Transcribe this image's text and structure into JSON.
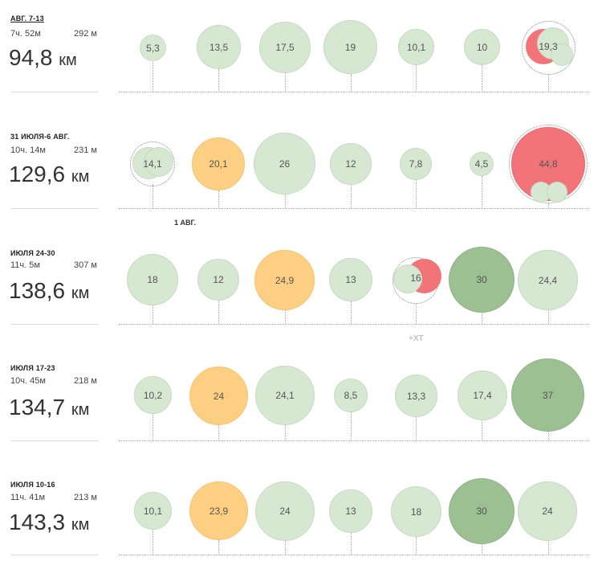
{
  "weeks": [
    {
      "label": "АВГ. 7-13",
      "time": "7ч. 52м",
      "elevation": "292 м",
      "distance": "94,8",
      "unit": "км",
      "days": [
        "5,3",
        "13,5",
        "17,5",
        "19",
        "10,1",
        "10",
        "19,3"
      ]
    },
    {
      "label": "31 ИЮЛЯ-6 АВГ.",
      "time": "10ч. 14м",
      "elevation": "231 м",
      "distance": "129,6",
      "unit": "км",
      "days": [
        "14,1",
        "20,1",
        "26",
        "12",
        "7,8",
        "4,5",
        "44,8"
      ],
      "note": "1 АВГ."
    },
    {
      "label": "ИЮЛЯ 24-30",
      "time": "11ч. 5м",
      "elevation": "307 м",
      "distance": "138,6",
      "unit": "км",
      "days": [
        "18",
        "12",
        "24,9",
        "13",
        "16",
        "30",
        "24,4"
      ],
      "note": "+XT"
    },
    {
      "label": "ИЮЛЯ 17-23",
      "time": "10ч. 45м",
      "elevation": "218 м",
      "distance": "134,7",
      "unit": "км",
      "days": [
        "10,2",
        "24",
        "24,1",
        "8,5",
        "13,3",
        "17,4",
        "37"
      ]
    },
    {
      "label": "ИЮЛЯ 10-16",
      "time": "11ч. 41м",
      "elevation": "213 м",
      "distance": "143,3",
      "unit": "км",
      "days": [
        "10,1",
        "23,9",
        "24",
        "13",
        "18",
        "30",
        "24"
      ]
    }
  ],
  "colors": {
    "easy": "#d6e7d2",
    "workout": "#fccf82",
    "long": "#9dc093",
    "race": "#f27479"
  }
}
